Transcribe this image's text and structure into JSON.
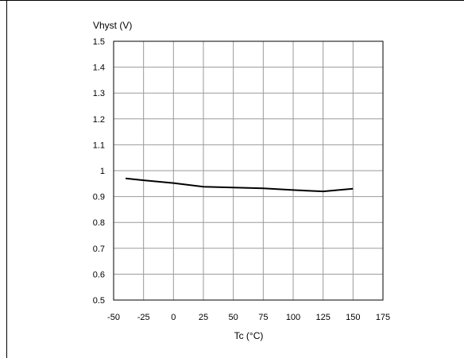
{
  "chart_data": {
    "type": "line",
    "title": "",
    "xlabel": "Tc (°C)",
    "ylabel": "Vhyst (V)",
    "xlim": [
      -50,
      175
    ],
    "ylim": [
      0.5,
      1.5
    ],
    "x_ticks": [
      "-50",
      "-25",
      "0",
      "25",
      "50",
      "75",
      "100",
      "125",
      "150",
      "175"
    ],
    "y_ticks": [
      "0.5",
      "0.6",
      "0.7",
      "0.8",
      "0.9",
      "1",
      "1.1",
      "1.2",
      "1.3",
      "1.4",
      "1.5"
    ],
    "grid": true,
    "series": [
      {
        "x": [
          -40,
          -25,
          0,
          25,
          50,
          75,
          100,
          125,
          150
        ],
        "values": [
          0.97,
          0.963,
          0.952,
          0.938,
          0.935,
          0.932,
          0.925,
          0.92,
          0.93
        ]
      }
    ]
  },
  "colors": {
    "line": "#000000",
    "grid": "#9a9a9a",
    "frame": "#000000"
  }
}
